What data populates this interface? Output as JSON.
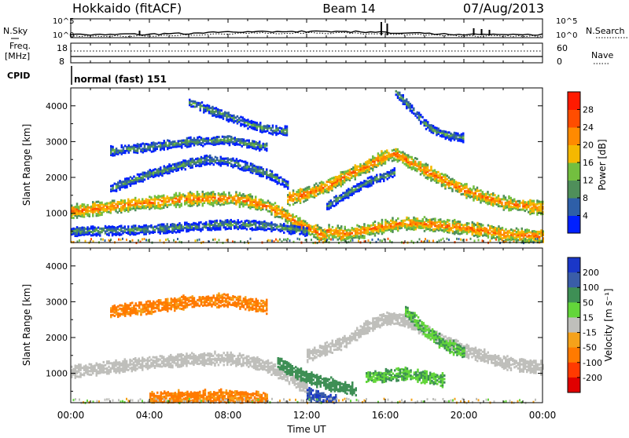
{
  "header": {
    "site": "Hokkaido (fitACF)",
    "beam": "Beam 14",
    "date": "07/Aug/2013"
  },
  "noise_panel": {
    "left_label": "N.Sky",
    "right_label": "N.Search",
    "right_legend_style": "dotted",
    "left_ticks": [
      "10^5",
      "10^0"
    ],
    "right_ticks": [
      "10^5",
      "10^0"
    ]
  },
  "freq_panel": {
    "left_label_line1": "Freq.",
    "left_label_line2": "[MHz]",
    "right_label": "Nave",
    "right_legend_style": "dotted",
    "left_ticks": [
      "18",
      "8"
    ],
    "right_ticks": [
      "60",
      "0"
    ]
  },
  "cpid_panel": {
    "label": "CPID",
    "mode_text": "normal (fast) 151"
  },
  "time_axis": {
    "ticks": [
      "00:00",
      "04:00",
      "08:00",
      "12:00",
      "16:00",
      "20:00",
      "00:00"
    ],
    "label": "Time UT"
  },
  "range_axis": {
    "label": "Slant Range [km]",
    "ticks": [
      "1000",
      "2000",
      "3000",
      "4000"
    ],
    "values": [
      1000,
      2000,
      3000,
      4000
    ],
    "ylim": [
      180,
      4500
    ]
  },
  "power_colorbar": {
    "title": "Power [dB]",
    "tick_labels": [
      "4",
      "8",
      "12",
      "16",
      "20",
      "24",
      "28"
    ],
    "colors": [
      "#0020ff",
      "#2e5fa8",
      "#4f8f5a",
      "#73bf3f",
      "#f5b800",
      "#ff8a00",
      "#ff4d00",
      "#ff1a00"
    ]
  },
  "velocity_colorbar": {
    "title": "Velocity [m s⁻¹]",
    "tick_labels": [
      "200",
      "100",
      "50",
      "15",
      "-15",
      "-50",
      "-100",
      "-200"
    ],
    "colors": [
      "#1a37c8",
      "#3a5da8",
      "#3e8f55",
      "#63d63a",
      "#bfbfbb",
      "#f5a21a",
      "#ff7a00",
      "#ff3a00",
      "#e00000"
    ]
  },
  "chart_data": [
    {
      "type": "heatmap",
      "title": "Power [dB]",
      "xlabel": "",
      "ylabel": "Slant Range [km]",
      "xlim": [
        "00:00",
        "24:00"
      ],
      "ylim": [
        180,
        4500
      ],
      "grid": false,
      "legend": "right colorbar",
      "echo_bands": [
        {
          "x": [
            0,
            2,
            4,
            6,
            8,
            9,
            10,
            11,
            12,
            13
          ],
          "y": [
            1050,
            1180,
            1300,
            1400,
            1420,
            1350,
            1200,
            900,
            600,
            350
          ],
          "level_db": 24
        },
        {
          "x": [
            11,
            12,
            13,
            14,
            15,
            15.8,
            16.5,
            17,
            18,
            19,
            20,
            21,
            22,
            23,
            24
          ],
          "y": [
            1400,
            1550,
            1750,
            2050,
            2300,
            2550,
            2650,
            2500,
            2200,
            1900,
            1650,
            1450,
            1300,
            1200,
            1150
          ],
          "level_db": 24
        },
        {
          "x": [
            13,
            14,
            15,
            16,
            17,
            18,
            19,
            20,
            21,
            22,
            23,
            24
          ],
          "y": [
            500,
            420,
            520,
            650,
            720,
            700,
            650,
            580,
            520,
            420,
            380,
            330
          ],
          "level_db": 24
        },
        {
          "x": [
            0,
            2,
            4,
            6,
            8,
            10,
            12
          ],
          "y": [
            500,
            520,
            560,
            620,
            700,
            650,
            500
          ],
          "level_db": 12
        },
        {
          "x": [
            2,
            4,
            6,
            7,
            8,
            9,
            10,
            11
          ],
          "y": [
            1700,
            2100,
            2400,
            2500,
            2450,
            2300,
            2100,
            1800
          ],
          "level_db": 12
        },
        {
          "x": [
            2,
            4,
            6,
            8,
            9,
            10
          ],
          "y": [
            2750,
            2850,
            3000,
            3050,
            2950,
            2850
          ],
          "level_db": 12
        },
        {
          "x": [
            6,
            7,
            8,
            9,
            10,
            11
          ],
          "y": [
            4100,
            3900,
            3700,
            3500,
            3350,
            3300
          ],
          "level_db": 12
        },
        {
          "x": [
            13,
            14,
            15,
            16,
            16.5
          ],
          "y": [
            1200,
            1550,
            1850,
            2050,
            2150
          ],
          "level_db": 12
        },
        {
          "x": [
            16.5,
            17,
            17.5,
            18,
            18.5,
            19,
            20
          ],
          "y": [
            4400,
            4100,
            3800,
            3500,
            3300,
            3200,
            3100
          ],
          "level_db": 12
        }
      ]
    },
    {
      "type": "heatmap",
      "title": "Velocity [m s⁻¹]",
      "xlabel": "Time UT",
      "ylabel": "Slant Range [km]",
      "xlim": [
        "00:00",
        "24:00"
      ],
      "ylim": [
        180,
        4500
      ],
      "grid": false,
      "legend": "right colorbar",
      "echo_bands": [
        {
          "x": [
            0,
            2,
            4,
            6,
            8,
            9,
            10,
            11,
            12
          ],
          "y": [
            1050,
            1180,
            1300,
            1400,
            1420,
            1350,
            1200,
            900,
            600
          ],
          "level_ms": 0
        },
        {
          "x": [
            12,
            14,
            15,
            16,
            17,
            18,
            20,
            22,
            24
          ],
          "y": [
            1500,
            1900,
            2300,
            2550,
            2500,
            2200,
            1650,
            1300,
            1150
          ],
          "level_ms": 0
        },
        {
          "x": [
            10.5,
            11.5,
            12.5,
            13.5,
            14.5
          ],
          "y": [
            1300,
            1000,
            800,
            650,
            550
          ],
          "level_ms": 60
        },
        {
          "x": [
            12,
            12.5,
            13,
            13.5
          ],
          "y": [
            450,
            350,
            260,
            220
          ],
          "level_ms": 150
        },
        {
          "x": [
            15,
            16,
            17,
            18,
            19
          ],
          "y": [
            900,
            950,
            1000,
            900,
            800
          ],
          "level_ms": 30
        },
        {
          "x": [
            17,
            17.5,
            18,
            18.5,
            19,
            20
          ],
          "y": [
            2700,
            2500,
            2200,
            2000,
            1800,
            1600
          ],
          "level_ms": 30
        },
        {
          "x": [
            2,
            4,
            6,
            8,
            9,
            10
          ],
          "y": [
            2750,
            2850,
            3000,
            3050,
            2950,
            2850
          ],
          "level_ms": -40
        },
        {
          "x": [
            4,
            6,
            8,
            9,
            10
          ],
          "y": [
            320,
            340,
            360,
            340,
            300
          ],
          "level_ms": -40
        }
      ]
    }
  ]
}
